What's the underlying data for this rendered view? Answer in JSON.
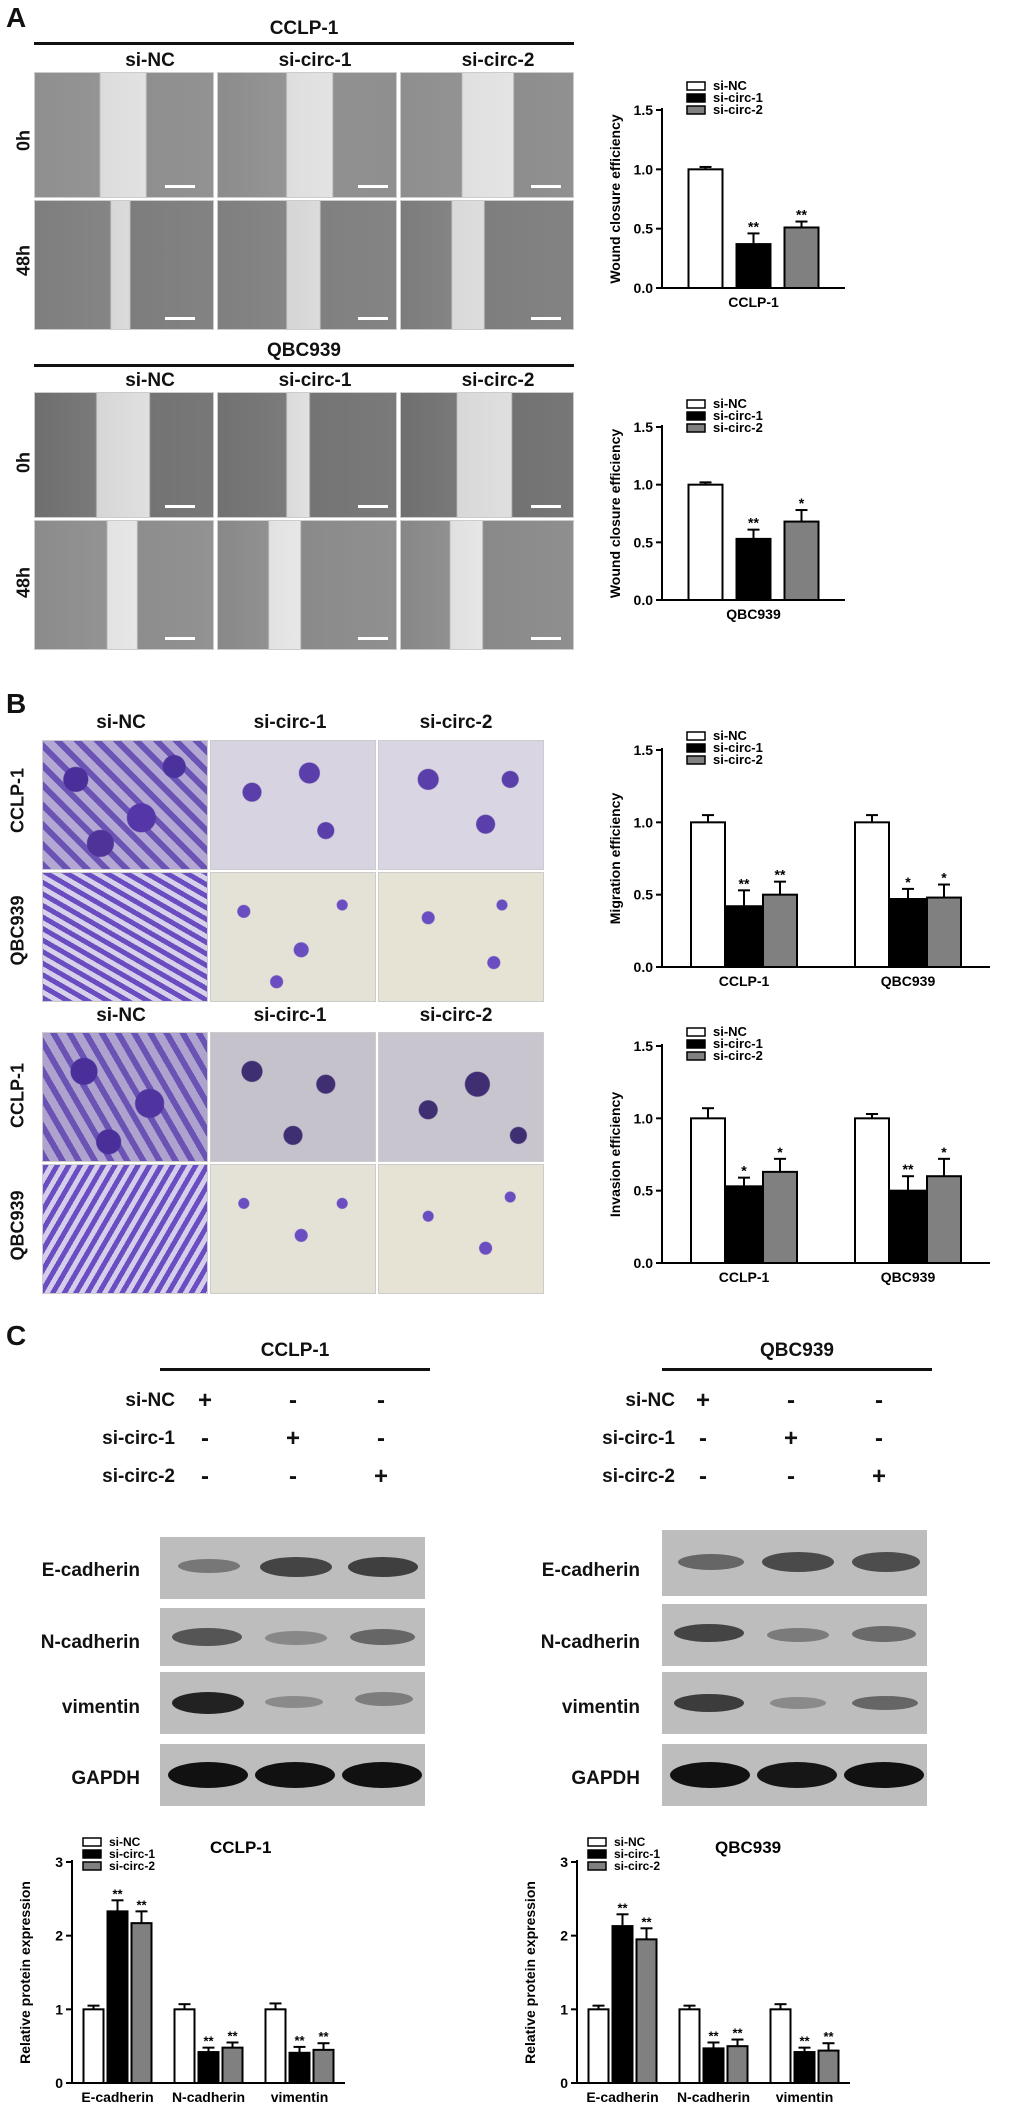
{
  "panels": {
    "a": "A",
    "b": "B",
    "c": "C"
  },
  "wound": {
    "blocks": [
      {
        "cell": "CCLP-1",
        "groups": [
          "si-NC",
          "si-circ-1",
          "si-circ-2"
        ],
        "rows": [
          "0h",
          "48h"
        ]
      },
      {
        "cell": "QBC939",
        "groups": [
          "si-NC",
          "si-circ-1",
          "si-circ-2"
        ],
        "rows": [
          "0h",
          "48h"
        ]
      }
    ]
  },
  "transwell": {
    "blocks": [
      {
        "groups": [
          "si-NC",
          "si-circ-1",
          "si-circ-2"
        ],
        "rows": [
          "CCLP-1",
          "QBC939"
        ]
      },
      {
        "groups": [
          "si-NC",
          "si-circ-1",
          "si-circ-2"
        ],
        "rows": [
          "CCLP-1",
          "QBC939"
        ]
      }
    ]
  },
  "western": {
    "blocks": [
      {
        "cell": "CCLP-1",
        "treat_rows": [
          "si-NC",
          "si-circ-1",
          "si-circ-2"
        ],
        "signs": [
          [
            "+",
            "-",
            "-"
          ],
          [
            "-",
            "+",
            "-"
          ],
          [
            "-",
            "-",
            "+"
          ]
        ],
        "proteins": [
          "E-cadherin",
          "N-cadherin",
          "vimentin",
          "GAPDH"
        ]
      },
      {
        "cell": "QBC939",
        "treat_rows": [
          "si-NC",
          "si-circ-1",
          "si-circ-2"
        ],
        "signs": [
          [
            "+",
            "-",
            "-"
          ],
          [
            "-",
            "+",
            "-"
          ],
          [
            "-",
            "-",
            "+"
          ]
        ],
        "proteins": [
          "E-cadherin",
          "N-cadherin",
          "vimentin",
          "GAPDH"
        ]
      }
    ]
  },
  "colors": {
    "si-NC": "#ffffff",
    "si-circ-1": "#000000",
    "si-circ-2": "#808080",
    "stain": "#5a3fa8"
  },
  "chart_data": [
    {
      "type": "bar",
      "ylabel": "Wound closure efficiency",
      "categories": [
        "CCLP-1"
      ],
      "ylim": [
        0,
        1.5
      ],
      "yticks": [
        "0.0",
        "0.5",
        "1.0",
        "1.5"
      ],
      "legend": [
        "si-NC",
        "si-circ-1",
        "si-circ-2"
      ],
      "legend_position": "top-right",
      "series": [
        {
          "name": "si-NC",
          "values": [
            1.0
          ],
          "err": [
            0.02
          ],
          "sig": [
            ""
          ]
        },
        {
          "name": "si-circ-1",
          "values": [
            0.37
          ],
          "err": [
            0.09
          ],
          "sig": [
            "**"
          ]
        },
        {
          "name": "si-circ-2",
          "values": [
            0.51
          ],
          "err": [
            0.05
          ],
          "sig": [
            "**"
          ]
        }
      ]
    },
    {
      "type": "bar",
      "ylabel": "Wound closure efficiency",
      "categories": [
        "QBC939"
      ],
      "ylim": [
        0,
        1.5
      ],
      "yticks": [
        "0.0",
        "0.5",
        "1.0",
        "1.5"
      ],
      "legend": [
        "si-NC",
        "si-circ-1",
        "si-circ-2"
      ],
      "legend_position": "top-right",
      "series": [
        {
          "name": "si-NC",
          "values": [
            1.0
          ],
          "err": [
            0.02
          ],
          "sig": [
            ""
          ]
        },
        {
          "name": "si-circ-1",
          "values": [
            0.53
          ],
          "err": [
            0.08
          ],
          "sig": [
            "**"
          ]
        },
        {
          "name": "si-circ-2",
          "values": [
            0.68
          ],
          "err": [
            0.1
          ],
          "sig": [
            "*"
          ]
        }
      ]
    },
    {
      "type": "bar",
      "ylabel": "Migration efficiency",
      "categories": [
        "CCLP-1",
        "QBC939"
      ],
      "ylim": [
        0,
        1.5
      ],
      "yticks": [
        "0.0",
        "0.5",
        "1.0",
        "1.5"
      ],
      "legend": [
        "si-NC",
        "si-circ-1",
        "si-circ-2"
      ],
      "legend_position": "top-center",
      "series": [
        {
          "name": "si-NC",
          "values": [
            1.0,
            1.0
          ],
          "err": [
            0.05,
            0.05
          ],
          "sig": [
            "",
            ""
          ]
        },
        {
          "name": "si-circ-1",
          "values": [
            0.42,
            0.47
          ],
          "err": [
            0.11,
            0.07
          ],
          "sig": [
            "**",
            "*"
          ]
        },
        {
          "name": "si-circ-2",
          "values": [
            0.5,
            0.48
          ],
          "err": [
            0.09,
            0.09
          ],
          "sig": [
            "**",
            "*"
          ]
        }
      ]
    },
    {
      "type": "bar",
      "ylabel": "Invasion efficiency",
      "categories": [
        "CCLP-1",
        "QBC939"
      ],
      "ylim": [
        0,
        1.5
      ],
      "yticks": [
        "0.0",
        "0.5",
        "1.0",
        "1.5"
      ],
      "legend": [
        "si-NC",
        "si-circ-1",
        "si-circ-2"
      ],
      "legend_position": "top-center",
      "series": [
        {
          "name": "si-NC",
          "values": [
            1.0,
            1.0
          ],
          "err": [
            0.07,
            0.03
          ],
          "sig": [
            "",
            ""
          ]
        },
        {
          "name": "si-circ-1",
          "values": [
            0.53,
            0.5
          ],
          "err": [
            0.06,
            0.1
          ],
          "sig": [
            "*",
            "**"
          ]
        },
        {
          "name": "si-circ-2",
          "values": [
            0.63,
            0.6
          ],
          "err": [
            0.09,
            0.12
          ],
          "sig": [
            "*",
            "*"
          ]
        }
      ]
    },
    {
      "type": "bar",
      "title": "CCLP-1",
      "ylabel": "Relative protein expression",
      "categories": [
        "E-cadherin",
        "N-cadherin",
        "vimentin"
      ],
      "ylim": [
        0,
        3
      ],
      "yticks": [
        "0",
        "1",
        "2",
        "3"
      ],
      "legend": [
        "si-NC",
        "si-circ-1",
        "si-circ-2"
      ],
      "legend_position": "top-left",
      "series": [
        {
          "name": "si-NC",
          "values": [
            1.0,
            1.0,
            1.0
          ],
          "err": [
            0.05,
            0.07,
            0.08
          ],
          "sig": [
            "",
            "",
            ""
          ]
        },
        {
          "name": "si-circ-1",
          "values": [
            2.33,
            0.42,
            0.41
          ],
          "err": [
            0.15,
            0.06,
            0.08
          ],
          "sig": [
            "**",
            "**",
            "**"
          ]
        },
        {
          "name": "si-circ-2",
          "values": [
            2.17,
            0.48,
            0.45
          ],
          "err": [
            0.16,
            0.07,
            0.09
          ],
          "sig": [
            "**",
            "**",
            "**"
          ]
        }
      ]
    },
    {
      "type": "bar",
      "title": "QBC939",
      "ylabel": "Relative protein expression",
      "categories": [
        "E-cadherin",
        "N-cadherin",
        "vimentin"
      ],
      "ylim": [
        0,
        3
      ],
      "yticks": [
        "0",
        "1",
        "2",
        "3"
      ],
      "legend": [
        "si-NC",
        "si-circ-1",
        "si-circ-2"
      ],
      "legend_position": "top-left",
      "series": [
        {
          "name": "si-NC",
          "values": [
            1.0,
            1.0,
            1.0
          ],
          "err": [
            0.05,
            0.05,
            0.07
          ],
          "sig": [
            "",
            "",
            ""
          ]
        },
        {
          "name": "si-circ-1",
          "values": [
            2.13,
            0.47,
            0.42
          ],
          "err": [
            0.16,
            0.08,
            0.06
          ],
          "sig": [
            "**",
            "**",
            "**"
          ]
        },
        {
          "name": "si-circ-2",
          "values": [
            1.95,
            0.5,
            0.44
          ],
          "err": [
            0.15,
            0.09,
            0.1
          ],
          "sig": [
            "**",
            "**",
            "**"
          ]
        }
      ]
    }
  ]
}
